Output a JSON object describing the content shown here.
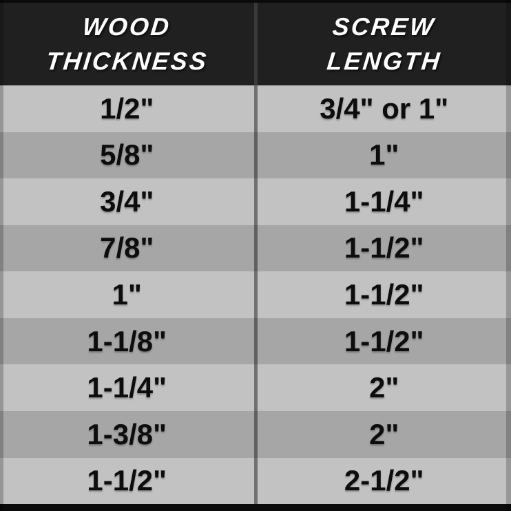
{
  "header": {
    "col1": {
      "line1": "WOOD",
      "line2": "THICKNESS"
    },
    "col2": {
      "line1": "SCREW",
      "line2": "LENGTH"
    }
  },
  "chart_data": {
    "type": "table",
    "columns": [
      "WOOD THICKNESS",
      "SCREW LENGTH"
    ],
    "rows": [
      {
        "wood": "1/2\"",
        "screw": "3/4\" or 1\""
      },
      {
        "wood": "5/8\"",
        "screw": "1\""
      },
      {
        "wood": "3/4\"",
        "screw": "1-1/4\""
      },
      {
        "wood": "7/8\"",
        "screw": "1-1/2\""
      },
      {
        "wood": "1\"",
        "screw": "1-1/2\""
      },
      {
        "wood": "1-1/8\"",
        "screw": "1-1/2\""
      },
      {
        "wood": "1-1/4\"",
        "screw": "2\""
      },
      {
        "wood": "1-3/8\"",
        "screw": "2\""
      },
      {
        "wood": "1-1/2\"",
        "screw": "2-1/2\""
      }
    ]
  },
  "colors": {
    "frame": "#0b0b0b",
    "header_bg": "#202020",
    "header_divider": "#3a3a3a",
    "header_text": "#ffffff",
    "row_light": "#c2c2c2",
    "row_dark": "#a6a6a6",
    "cell_text": "#0d0d0d"
  }
}
